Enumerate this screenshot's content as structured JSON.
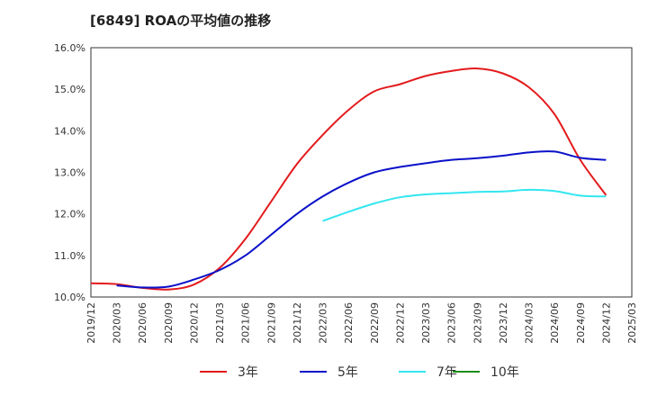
{
  "chart_data": {
    "type": "line",
    "title": "[6849]  ROAの平均値の推移",
    "xlabel": "",
    "ylabel": "",
    "ylim": [
      10.0,
      16.0
    ],
    "y_ticks": [
      "10.0%",
      "11.0%",
      "12.0%",
      "13.0%",
      "14.0%",
      "15.0%",
      "16.0%"
    ],
    "x_ticks": [
      "2019/12",
      "2020/03",
      "2020/06",
      "2020/09",
      "2020/12",
      "2021/03",
      "2021/06",
      "2021/09",
      "2021/12",
      "2022/03",
      "2022/06",
      "2022/09",
      "2022/12",
      "2023/03",
      "2023/06",
      "2023/09",
      "2023/12",
      "2024/03",
      "2024/06",
      "2024/09",
      "2024/12",
      "2025/03"
    ],
    "grid": true,
    "legend_position": "bottom",
    "series": [
      {
        "name": "3年",
        "color": "#e31a1c",
        "x": [
          "2019/12",
          "2020/03",
          "2020/06",
          "2020/09",
          "2020/12",
          "2021/03",
          "2021/06",
          "2021/09",
          "2021/12",
          "2022/03",
          "2022/06",
          "2022/09",
          "2022/12",
          "2023/03",
          "2023/06",
          "2023/09",
          "2023/12",
          "2024/03",
          "2024/06",
          "2024/09",
          "2024/12"
        ],
        "values": [
          10.33,
          10.31,
          10.22,
          10.18,
          10.3,
          10.7,
          11.4,
          12.3,
          13.2,
          13.9,
          14.5,
          14.95,
          15.12,
          15.32,
          15.44,
          15.5,
          15.38,
          15.05,
          14.4,
          13.3,
          12.45
        ]
      },
      {
        "name": "5年",
        "color": "#0a10c8",
        "x": [
          "2020/03",
          "2020/06",
          "2020/09",
          "2020/12",
          "2021/03",
          "2021/06",
          "2021/09",
          "2021/12",
          "2022/03",
          "2022/06",
          "2022/09",
          "2022/12",
          "2023/03",
          "2023/06",
          "2023/09",
          "2023/12",
          "2024/03",
          "2024/06",
          "2024/09",
          "2024/12"
        ],
        "values": [
          10.28,
          10.23,
          10.25,
          10.42,
          10.65,
          11.0,
          11.5,
          12.0,
          12.42,
          12.75,
          13.0,
          13.13,
          13.22,
          13.3,
          13.34,
          13.4,
          13.48,
          13.5,
          13.35,
          13.3
        ]
      },
      {
        "name": "7年",
        "color": "#33e6f0",
        "x": [
          "2022/03",
          "2022/06",
          "2022/09",
          "2022/12",
          "2023/03",
          "2023/06",
          "2023/09",
          "2023/12",
          "2024/03",
          "2024/06",
          "2024/09",
          "2024/12"
        ],
        "values": [
          11.83,
          12.05,
          12.25,
          12.4,
          12.47,
          12.5,
          12.53,
          12.54,
          12.58,
          12.55,
          12.44,
          12.42
        ]
      },
      {
        "name": "10年",
        "color": "#1a8c1a",
        "x": [],
        "values": []
      }
    ]
  }
}
